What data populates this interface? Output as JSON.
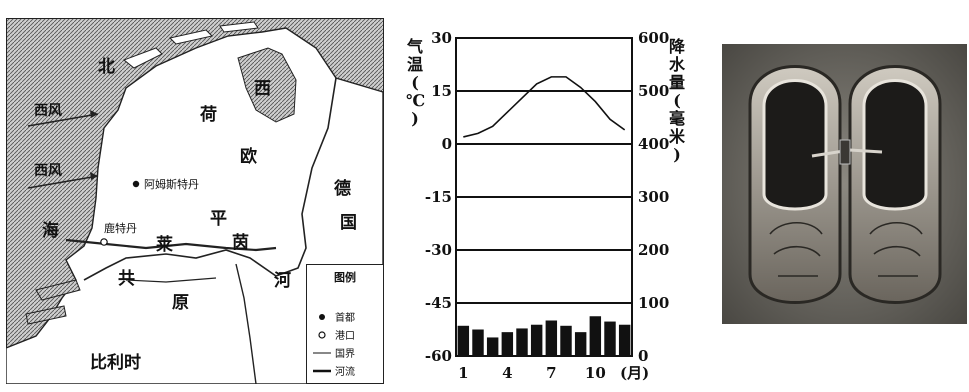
{
  "map": {
    "labels": {
      "north": "北",
      "sea": "海",
      "west": "西",
      "lotus": "荷",
      "europe": "欧",
      "plain": "平",
      "lai": "莱",
      "yin": "茵",
      "germany_1": "德",
      "germany_2": "国",
      "river": "河",
      "gong": "共",
      "yuan": "原",
      "belgium": "比利时"
    },
    "wind_labels": [
      "西风",
      "西风"
    ],
    "city_capital": "阿姆斯特丹",
    "city_port": "鹿特丹",
    "legend": {
      "title": "图例",
      "items": [
        "首都",
        "港口",
        "国界",
        "河流"
      ]
    }
  },
  "chart_data": {
    "type": "bar+line",
    "x": [
      1,
      2,
      3,
      4,
      5,
      6,
      7,
      8,
      9,
      10,
      11,
      12
    ],
    "x_tick_labels": [
      "1",
      "4",
      "7",
      "10"
    ],
    "x_unit": "(月)",
    "temperature_c": [
      2,
      3,
      5,
      9,
      13,
      17,
      19,
      19,
      16,
      12,
      7,
      4
    ],
    "precipitation_mm": [
      57,
      50,
      35,
      45,
      52,
      59,
      67,
      57,
      45,
      75,
      65,
      59
    ],
    "left_axis": {
      "label": "气温(℃)",
      "range": [
        -60,
        30
      ],
      "ticks": [
        "30",
        "15",
        "0",
        "-15",
        "-30",
        "-45",
        "-60"
      ]
    },
    "right_axis": {
      "label": "降水量(毫米)",
      "range": [
        0,
        600
      ],
      "ticks": [
        "600",
        "500",
        "400",
        "300",
        "200",
        "100",
        "0"
      ]
    },
    "gridlines": true
  },
  "photo": {
    "subject": "wooden-clogs"
  },
  "colors": {
    "ink": "#111111",
    "sea_hatch": "#555555",
    "bar_fill": "#111111",
    "photo_bg": "#6f6c66"
  }
}
